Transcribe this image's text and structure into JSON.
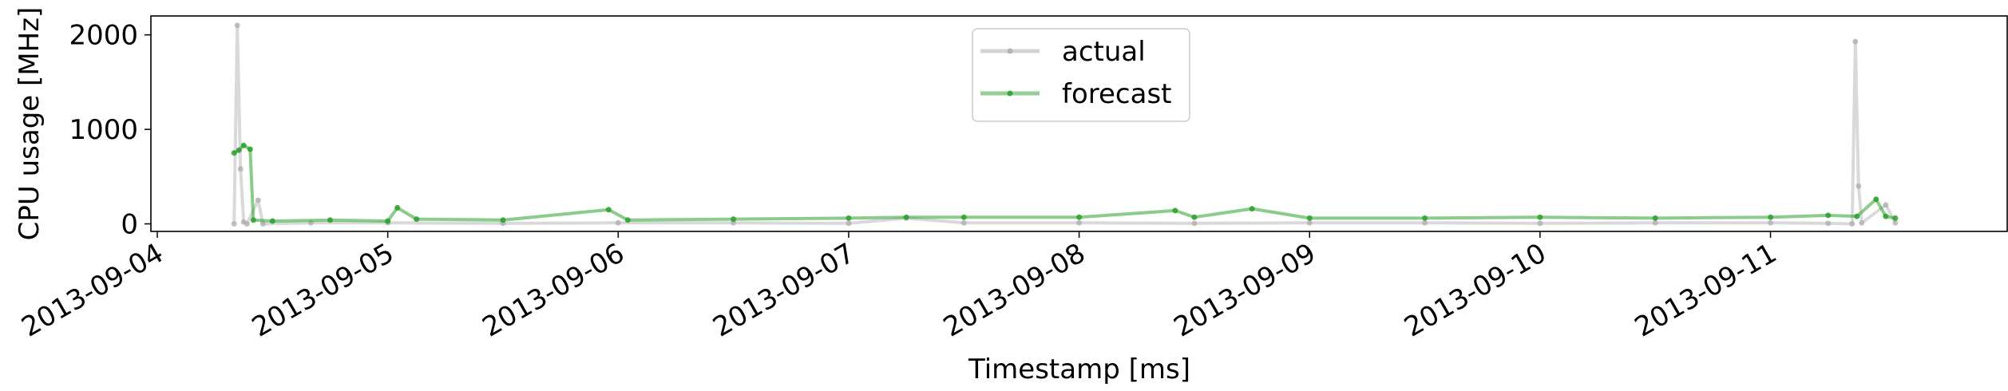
{
  "chart_data": {
    "type": "line",
    "xlabel": "Timestamp [ms]",
    "ylabel": "CPU usage [MHz]",
    "x_type": "date",
    "xlim": [
      "2013-09-04T00:00",
      "2013-09-11T23:59"
    ],
    "ylim": [
      -80,
      2200
    ],
    "x_ticks": [
      "2013-09-04",
      "2013-09-05",
      "2013-09-06",
      "2013-09-07",
      "2013-09-08",
      "2013-09-09",
      "2013-09-10",
      "2013-09-11"
    ],
    "y_ticks": [
      0,
      1000,
      2000
    ],
    "grid": false,
    "legend": {
      "placement": "top-center",
      "entries": [
        "actual",
        "forecast"
      ]
    },
    "series": [
      {
        "name": "actual",
        "color": "#aaaaaa",
        "points": [
          [
            "2013-09-04T08:00",
            0
          ],
          [
            "2013-09-04T08:20",
            2100
          ],
          [
            "2013-09-04T08:40",
            580
          ],
          [
            "2013-09-04T09:00",
            20
          ],
          [
            "2013-09-04T09:20",
            0
          ],
          [
            "2013-09-04T10:30",
            250
          ],
          [
            "2013-09-04T11:00",
            0
          ],
          [
            "2013-09-04T16:00",
            10
          ],
          [
            "2013-09-05T00:00",
            10
          ],
          [
            "2013-09-05T12:00",
            5
          ],
          [
            "2013-09-06T00:00",
            10
          ],
          [
            "2013-09-06T12:00",
            10
          ],
          [
            "2013-09-07T00:00",
            5
          ],
          [
            "2013-09-07T06:00",
            60
          ],
          [
            "2013-09-07T12:00",
            10
          ],
          [
            "2013-09-08T00:00",
            10
          ],
          [
            "2013-09-08T12:00",
            5
          ],
          [
            "2013-09-09T00:00",
            10
          ],
          [
            "2013-09-09T12:00",
            10
          ],
          [
            "2013-09-10T00:00",
            5
          ],
          [
            "2013-09-10T12:00",
            10
          ],
          [
            "2013-09-11T00:00",
            10
          ],
          [
            "2013-09-11T06:00",
            5
          ],
          [
            "2013-09-11T08:30",
            0
          ],
          [
            "2013-09-11T08:50",
            1930
          ],
          [
            "2013-09-11T09:10",
            400
          ],
          [
            "2013-09-11T09:30",
            10
          ],
          [
            "2013-09-11T12:00",
            200
          ],
          [
            "2013-09-11T13:00",
            10
          ]
        ]
      },
      {
        "name": "forecast",
        "color": "#2ca02c",
        "points": [
          [
            "2013-09-04T08:00",
            750
          ],
          [
            "2013-09-04T08:30",
            780
          ],
          [
            "2013-09-04T09:00",
            830
          ],
          [
            "2013-09-04T09:40",
            790
          ],
          [
            "2013-09-04T10:00",
            40
          ],
          [
            "2013-09-04T12:00",
            30
          ],
          [
            "2013-09-04T18:00",
            40
          ],
          [
            "2013-09-05T00:00",
            30
          ],
          [
            "2013-09-05T01:00",
            170
          ],
          [
            "2013-09-05T03:00",
            50
          ],
          [
            "2013-09-05T12:00",
            40
          ],
          [
            "2013-09-05T23:00",
            150
          ],
          [
            "2013-09-06T01:00",
            40
          ],
          [
            "2013-09-06T12:00",
            50
          ],
          [
            "2013-09-07T00:00",
            60
          ],
          [
            "2013-09-07T06:00",
            70
          ],
          [
            "2013-09-07T12:00",
            70
          ],
          [
            "2013-09-08T00:00",
            70
          ],
          [
            "2013-09-08T10:00",
            140
          ],
          [
            "2013-09-08T12:00",
            70
          ],
          [
            "2013-09-08T18:00",
            160
          ],
          [
            "2013-09-09T00:00",
            60
          ],
          [
            "2013-09-09T12:00",
            60
          ],
          [
            "2013-09-10T00:00",
            70
          ],
          [
            "2013-09-10T12:00",
            60
          ],
          [
            "2013-09-11T00:00",
            70
          ],
          [
            "2013-09-11T06:00",
            90
          ],
          [
            "2013-09-11T09:00",
            80
          ],
          [
            "2013-09-11T11:00",
            260
          ],
          [
            "2013-09-11T12:00",
            80
          ],
          [
            "2013-09-11T13:00",
            60
          ]
        ]
      }
    ]
  }
}
